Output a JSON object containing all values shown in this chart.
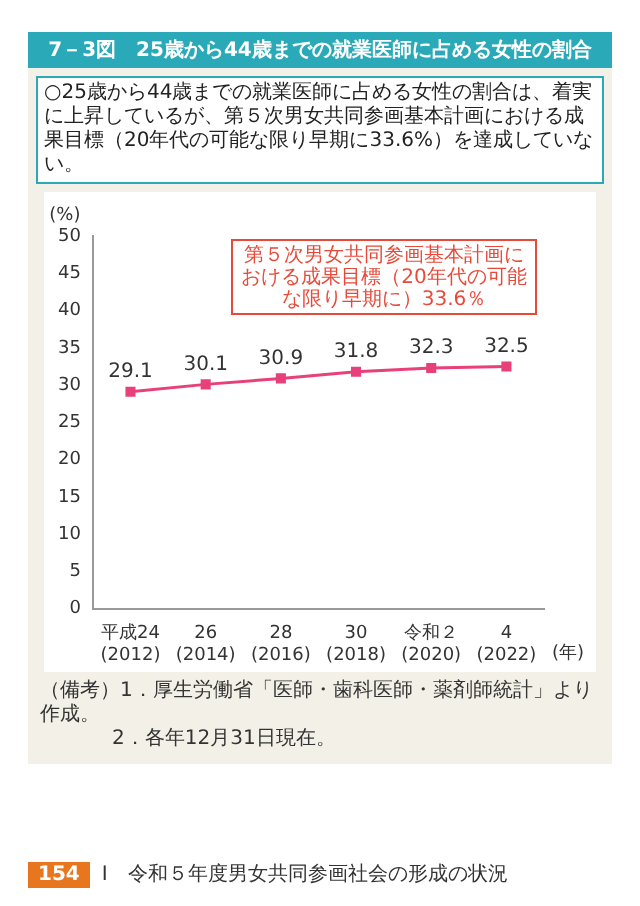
{
  "chart_data": {
    "type": "line",
    "title": "7－3図　25歳から44歳までの就業医師に占める女性の割合",
    "subtitle": "○25歳から44歳までの就業医師に占める女性の割合は、着実に上昇しているが、第５次男女共同参画基本計画における成果目標（20年代の可能な限り早期に33.6%）を達成していない。",
    "categories": [
      "平成24\n(2012)",
      "26\n(2014)",
      "28\n(2016)",
      "30\n(2018)",
      "令和２\n(2020)",
      "4\n(2022)"
    ],
    "xlabel": "(年)",
    "ylabel": "(%)",
    "series": [
      {
        "color": "#e8407a",
        "values": [
          29.1,
          30.1,
          30.9,
          31.8,
          32.3,
          32.5
        ]
      }
    ],
    "ylim": [
      0,
      50
    ],
    "yticks": [
      0,
      5,
      10,
      15,
      20,
      25,
      30,
      35,
      40,
      45,
      50
    ],
    "marker": "square",
    "data_labels": true,
    "annotations": [
      "第５次男女共同参画基本計画における成果目標（20年代の可能な限り早期に）33.6％",
      "（備考）1．厚生労働省「医師・歯科医師・薬剤師統計」より作成。",
      "2．各年12月31日現在。",
      "154",
      "I　令和５年度男女共同参画社会の形成の状況"
    ]
  }
}
